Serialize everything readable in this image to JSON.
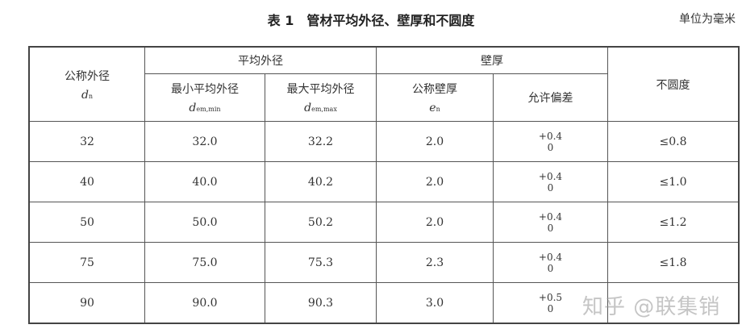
{
  "title": "表 1　管材平均外径、壁厚和不圆度",
  "unit": "单位为毫米",
  "headers": {
    "nominal_od": "公称外径",
    "nominal_od_sym": "d",
    "nominal_od_sub": "n",
    "mean_od": "平均外径",
    "min_mean_od": "最小平均外径",
    "min_sym": "d",
    "min_sub": "em,min",
    "max_mean_od": "最大平均外径",
    "max_sym": "d",
    "max_sub": "em,max",
    "wall": "壁厚",
    "nominal_wall": "公称壁厚",
    "wall_sym": "e",
    "wall_sub": "n",
    "tolerance": "允许偏差",
    "ovality": "不圆度"
  },
  "rows": [
    {
      "dn": "32",
      "min": "32.0",
      "max": "32.2",
      "en": "2.0",
      "tol_up": "+0.4",
      "tol_low": "0",
      "oval": "≤0.8"
    },
    {
      "dn": "40",
      "min": "40.0",
      "max": "40.2",
      "en": "2.0",
      "tol_up": "+0.4",
      "tol_low": "0",
      "oval": "≤1.0"
    },
    {
      "dn": "50",
      "min": "50.0",
      "max": "50.2",
      "en": "2.0",
      "tol_up": "+0.4",
      "tol_low": "0",
      "oval": "≤1.2"
    },
    {
      "dn": "75",
      "min": "75.0",
      "max": "75.3",
      "en": "2.3",
      "tol_up": "+0.4",
      "tol_low": "0",
      "oval": "≤1.8"
    },
    {
      "dn": "90",
      "min": "90.0",
      "max": "90.3",
      "en": "3.0",
      "tol_up": "+0.5",
      "tol_low": "0",
      "oval": ""
    }
  ],
  "watermark": "知乎 @联集销"
}
